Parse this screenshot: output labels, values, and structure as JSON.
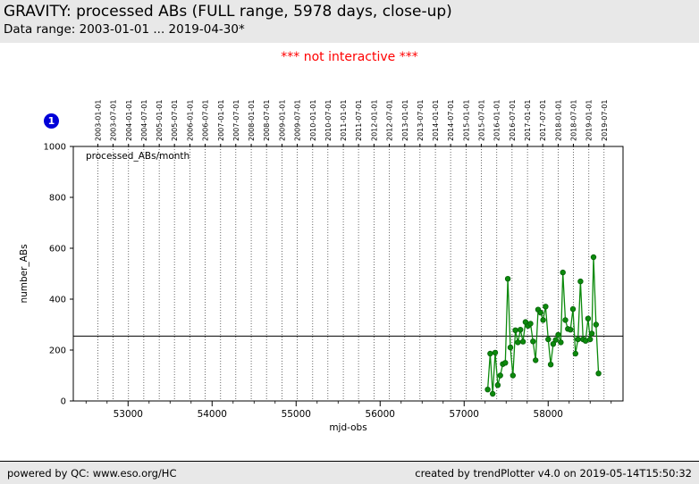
{
  "header": {
    "title": "GRAVITY: processed ABs (FULL range, 5978 days, close-up)",
    "subtitle": "Data range: 2003-01-01 ... 2019-04-30*"
  },
  "notice": "*** not interactive ***",
  "badge": {
    "label": "1",
    "color": "#0000d8"
  },
  "footer": {
    "left": "powered by QC: www.eso.org/HC",
    "right": "created by trendPlotter v4.0 on 2019-05-14T15:50:32"
  },
  "chart_data": {
    "type": "line",
    "legend": "processed_ABs/month",
    "xlabel": "mjd-obs",
    "ylabel": "number_ABs",
    "xlim": [
      52348,
      58891
    ],
    "ylim": [
      0,
      1000
    ],
    "x_major_ticks": [
      53000,
      54000,
      55000,
      56000,
      57000,
      58000
    ],
    "x_minor_tick_step": 250,
    "y_ticks": [
      0,
      200,
      400,
      600,
      800,
      1000
    ],
    "top_axis_dates": [
      "2003-01-01",
      "2003-07-01",
      "2004-01-01",
      "2004-07-01",
      "2005-01-01",
      "2005-07-01",
      "2006-01-01",
      "2006-07-01",
      "2007-01-01",
      "2007-07-01",
      "2008-01-01",
      "2008-07-01",
      "2009-01-01",
      "2009-07-01",
      "2010-01-01",
      "2010-07-01",
      "2011-01-01",
      "2011-07-01",
      "2012-01-01",
      "2012-07-01",
      "2013-01-01",
      "2013-07-01",
      "2014-01-01",
      "2014-07-01",
      "2015-01-01",
      "2015-07-01",
      "2016-01-01",
      "2016-07-01",
      "2017-01-01",
      "2017-07-01",
      "2018-01-01",
      "2018-07-01",
      "2019-01-01",
      "2019-07-01"
    ],
    "reference_line_y": 255,
    "grid": "vertical-dotted",
    "line_color": "#0c8a0c",
    "marker_edge_color": "#07610a",
    "series": [
      {
        "name": "processed_ABs/month",
        "points": [
          [
            57280,
            45
          ],
          [
            57310,
            186
          ],
          [
            57340,
            28
          ],
          [
            57370,
            190
          ],
          [
            57400,
            62
          ],
          [
            57430,
            100
          ],
          [
            57460,
            145
          ],
          [
            57490,
            150
          ],
          [
            57520,
            480
          ],
          [
            57550,
            210
          ],
          [
            57580,
            100
          ],
          [
            57610,
            278
          ],
          [
            57640,
            230
          ],
          [
            57670,
            280
          ],
          [
            57700,
            233
          ],
          [
            57730,
            310
          ],
          [
            57760,
            295
          ],
          [
            57790,
            304
          ],
          [
            57820,
            234
          ],
          [
            57850,
            160
          ],
          [
            57880,
            359
          ],
          [
            57910,
            347
          ],
          [
            57940,
            318
          ],
          [
            57970,
            371
          ],
          [
            58000,
            242
          ],
          [
            58030,
            143
          ],
          [
            58060,
            224
          ],
          [
            58090,
            240
          ],
          [
            58120,
            260
          ],
          [
            58150,
            230
          ],
          [
            58175,
            505
          ],
          [
            58205,
            318
          ],
          [
            58235,
            283
          ],
          [
            58265,
            280
          ],
          [
            58295,
            361
          ],
          [
            58325,
            186
          ],
          [
            58355,
            242
          ],
          [
            58385,
            470
          ],
          [
            58415,
            242
          ],
          [
            58445,
            236
          ],
          [
            58475,
            324
          ],
          [
            58500,
            242
          ],
          [
            58520,
            265
          ],
          [
            58540,
            565
          ],
          [
            58570,
            300
          ],
          [
            58600,
            108
          ]
        ]
      }
    ]
  }
}
